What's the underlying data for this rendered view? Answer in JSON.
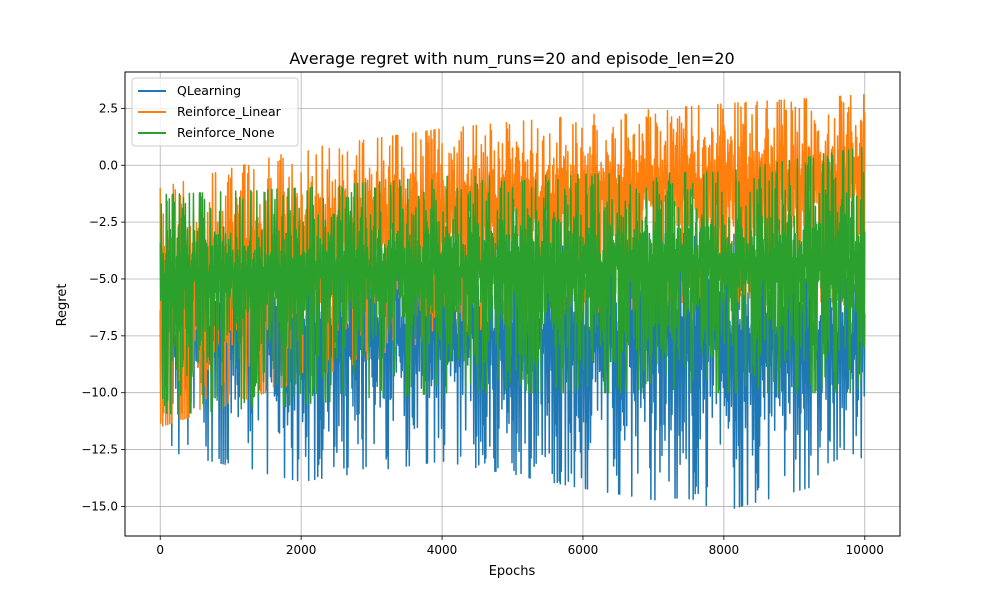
{
  "chart_data": {
    "type": "line",
    "title": "Average regret with num_runs=20 and episode_len=20",
    "xlabel": "Epochs",
    "ylabel": "Regret",
    "xlim": [
      -500,
      10500
    ],
    "ylim": [
      -16.3,
      4.1
    ],
    "xticks": [
      0,
      2000,
      4000,
      6000,
      8000,
      10000
    ],
    "xtick_labels": [
      "0",
      "2000",
      "4000",
      "6000",
      "8000",
      "10000"
    ],
    "yticks": [
      2.5,
      0.0,
      -2.5,
      -5.0,
      -7.5,
      -10.0,
      -12.5,
      -15.0
    ],
    "ytick_labels": [
      "2.5",
      "0.0",
      "−2.5",
      "−5.0",
      "−7.5",
      "−10.0",
      "−12.5",
      "−15.0"
    ],
    "grid": true,
    "legend_position": "upper-left",
    "x_range": [
      0,
      10000
    ],
    "series": [
      {
        "name": "QLearning",
        "color": "#1f77b4",
        "trend_x": [
          0,
          2000,
          4000,
          6000,
          8000,
          10000
        ],
        "mean": [
          -6.8,
          -7.2,
          -7.3,
          -7.4,
          -7.5,
          -7.6
        ],
        "low": [
          -12.5,
          -13.9,
          -13.0,
          -14.2,
          -15.2,
          -13.5
        ],
        "high": [
          -4.5,
          -4.0,
          -3.5,
          -3.0,
          -3.0,
          -3.5
        ]
      },
      {
        "name": "Reinforce_Linear",
        "color": "#ff7f0e",
        "trend_x": [
          0,
          2000,
          4000,
          6000,
          8000,
          10000
        ],
        "mean": [
          -4.8,
          -3.0,
          -2.0,
          -1.2,
          -0.7,
          -0.4
        ],
        "low": [
          -11.5,
          -9.5,
          -7.5,
          -6.5,
          -6.0,
          -6.0
        ],
        "high": [
          -1.0,
          0.7,
          1.6,
          2.2,
          2.7,
          3.1
        ]
      },
      {
        "name": "Reinforce_None",
        "color": "#2ca02c",
        "trend_x": [
          0,
          2000,
          4000,
          6000,
          8000,
          10000
        ],
        "mean": [
          -4.8,
          -4.6,
          -4.5,
          -4.4,
          -4.3,
          -4.2
        ],
        "low": [
          -11.0,
          -10.5,
          -10.0,
          -10.0,
          -10.0,
          -10.0
        ],
        "high": [
          -1.3,
          -1.0,
          -0.5,
          -0.4,
          -0.3,
          0.8
        ]
      }
    ]
  }
}
